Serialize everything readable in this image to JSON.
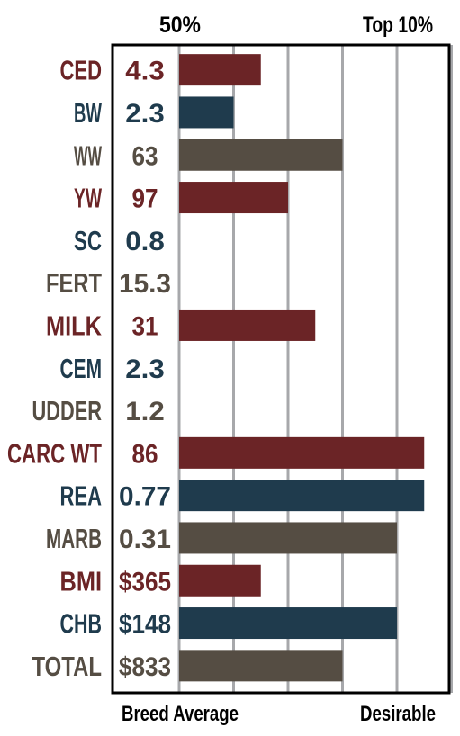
{
  "colors": {
    "red": "#6b2426",
    "navy": "#1f3b4d",
    "gray": "#554d43",
    "gridline": "#a7a8ab",
    "frame": "#000000"
  },
  "chart_data": {
    "type": "bar",
    "orientation": "horizontal",
    "top_labels": {
      "left": "50%",
      "right": "Top 10%"
    },
    "bottom_labels": {
      "left": "Breed Average",
      "right": "Desirable"
    },
    "scale": {
      "min": 0,
      "max": 5,
      "unit": "gridline steps from breed average"
    },
    "rows": [
      {
        "label": "CED",
        "value_label": "4.3",
        "bar": 1.5,
        "color": "red"
      },
      {
        "label": "BW",
        "value_label": "2.3",
        "bar": 1.0,
        "color": "navy"
      },
      {
        "label": "WW",
        "value_label": "63",
        "bar": 3.0,
        "color": "gray"
      },
      {
        "label": "YW",
        "value_label": "97",
        "bar": 2.0,
        "color": "red"
      },
      {
        "label": "SC",
        "value_label": "0.8",
        "bar": 0,
        "color": "navy"
      },
      {
        "label": "FERT",
        "value_label": "15.3",
        "bar": 0,
        "color": "gray"
      },
      {
        "label": "MILK",
        "value_label": "31",
        "bar": 2.5,
        "color": "red"
      },
      {
        "label": "CEM",
        "value_label": "2.3",
        "bar": 0,
        "color": "navy"
      },
      {
        "label": "UDDER",
        "value_label": "1.2",
        "bar": 0,
        "color": "gray"
      },
      {
        "label": "CARC WT",
        "value_label": "86",
        "bar": 4.5,
        "color": "red"
      },
      {
        "label": "REA",
        "value_label": "0.77",
        "bar": 4.5,
        "color": "navy"
      },
      {
        "label": "MARB",
        "value_label": "0.31",
        "bar": 4.0,
        "color": "gray"
      },
      {
        "label": "BMI",
        "value_label": "$365",
        "bar": 1.5,
        "color": "red"
      },
      {
        "label": "CHB",
        "value_label": "$148",
        "bar": 4.0,
        "color": "navy"
      },
      {
        "label": "TOTAL",
        "value_label": "$833",
        "bar": 3.0,
        "color": "gray"
      }
    ]
  }
}
